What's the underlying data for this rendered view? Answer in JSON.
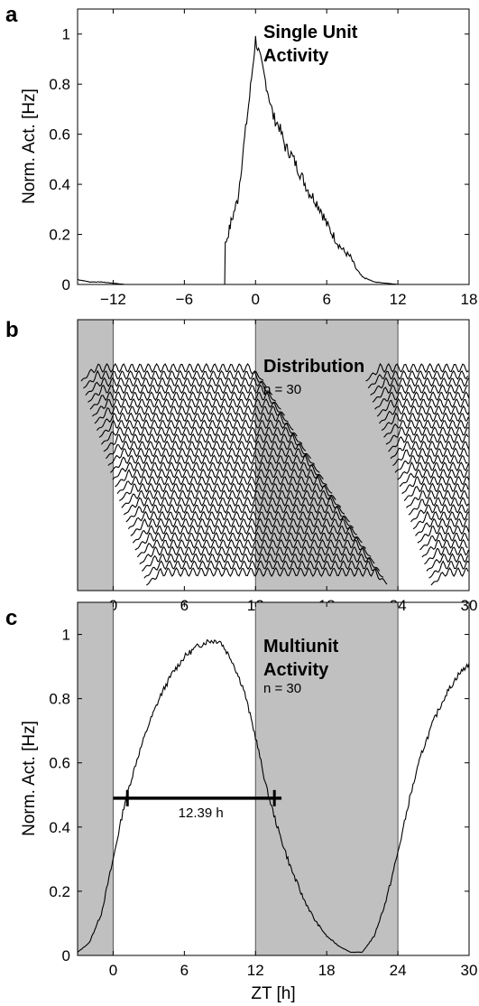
{
  "chart_data": [
    {
      "panel": "a",
      "type": "line",
      "title": "",
      "annotations": [
        "Single Unit",
        "Activity"
      ],
      "xlabel": "",
      "ylabel": "Norm. Act. [Hz]",
      "xlim": [
        -15,
        18
      ],
      "ylim": [
        0,
        1.1
      ],
      "xticks": [
        -12,
        -6,
        0,
        6,
        12,
        18
      ],
      "xtick_labels": [
        "−12",
        "−6",
        "0",
        "6",
        "12",
        "18"
      ],
      "yticks": [
        0,
        0.2,
        0.4,
        0.6,
        0.8,
        1
      ],
      "ytick_labels": [
        "0",
        "0.2",
        "0.4",
        "0.6",
        "0.8",
        "1"
      ],
      "series": [
        {
          "x": [
            -15,
            -14,
            -13,
            -12,
            -11,
            -10,
            -9,
            -8,
            -7,
            -6,
            -5,
            -4,
            -3.1,
            -2.6,
            -2.55,
            -2.2,
            -2,
            -1.5,
            -1,
            -0.5,
            0,
            0.5,
            1,
            1.5,
            2,
            2.5,
            3,
            3.5,
            4,
            4.5,
            5,
            5.5,
            6,
            6.5,
            7,
            7.5,
            8,
            8.5,
            9,
            9.5,
            10,
            11,
            12,
            13
          ],
          "y": [
            0.02,
            0.01,
            0.01,
            0.005,
            0,
            0,
            0,
            0,
            0,
            0,
            0,
            0,
            0,
            0,
            0.16,
            0.22,
            0.26,
            0.34,
            0.55,
            0.75,
            0.98,
            0.88,
            0.78,
            0.67,
            0.63,
            0.55,
            0.52,
            0.47,
            0.42,
            0.37,
            0.34,
            0.3,
            0.24,
            0.2,
            0.16,
            0.13,
            0.11,
            0.06,
            0.03,
            0.02,
            0.01,
            0.005,
            0,
            0
          ]
        }
      ]
    },
    {
      "panel": "b",
      "type": "line",
      "annotations": [
        "Distribution",
        "n = 30"
      ],
      "xlabel": "",
      "ylabel": "",
      "xlim": [
        -3,
        30
      ],
      "xticks": [
        0,
        6,
        12,
        18,
        24,
        30
      ],
      "xtick_labels": [
        "0",
        "6",
        "12",
        "18",
        "24",
        "30"
      ],
      "dark_periods": [
        [
          -3,
          0
        ],
        [
          12,
          24
        ]
      ],
      "n_units": 30,
      "unit_onset_range": [
        -1.5,
        4
      ],
      "unit_offset_range": [
        11.5,
        22
      ]
    },
    {
      "panel": "c",
      "type": "line",
      "annotations": [
        "Multiunit",
        "Activity",
        "n = 30",
        "12.39 h"
      ],
      "xlabel": "ZT [h]",
      "ylabel": "Norm. Act. [Hz]",
      "xlim": [
        -3,
        30
      ],
      "ylim": [
        0,
        1.1
      ],
      "xticks": [
        0,
        6,
        12,
        18,
        24,
        30
      ],
      "xtick_labels": [
        "0",
        "6",
        "12",
        "18",
        "24",
        "30"
      ],
      "yticks": [
        0,
        0.2,
        0.4,
        0.6,
        0.8,
        1
      ],
      "ytick_labels": [
        "0",
        "0.2",
        "0.4",
        "0.6",
        "0.8",
        "1"
      ],
      "dark_periods": [
        [
          -3,
          0
        ],
        [
          12,
          24
        ]
      ],
      "width_bar": {
        "x_start": 1.2,
        "x_end": 13.59,
        "y": 0.49,
        "label": "12.39 h"
      },
      "series": [
        {
          "x": [
            -3,
            -2,
            -1,
            0,
            1,
            2,
            3,
            4,
            5,
            6,
            7,
            8,
            9,
            10,
            11,
            12,
            13,
            14,
            15,
            16,
            17,
            18,
            19,
            20,
            21,
            22,
            23,
            24,
            25,
            26,
            27,
            28,
            29,
            30
          ],
          "y": [
            0.01,
            0.04,
            0.13,
            0.3,
            0.48,
            0.61,
            0.72,
            0.81,
            0.88,
            0.93,
            0.96,
            0.98,
            0.98,
            0.92,
            0.83,
            0.68,
            0.51,
            0.38,
            0.27,
            0.18,
            0.11,
            0.06,
            0.03,
            0.01,
            0.01,
            0.06,
            0.17,
            0.32,
            0.49,
            0.63,
            0.73,
            0.81,
            0.87,
            0.91
          ]
        }
      ]
    }
  ]
}
